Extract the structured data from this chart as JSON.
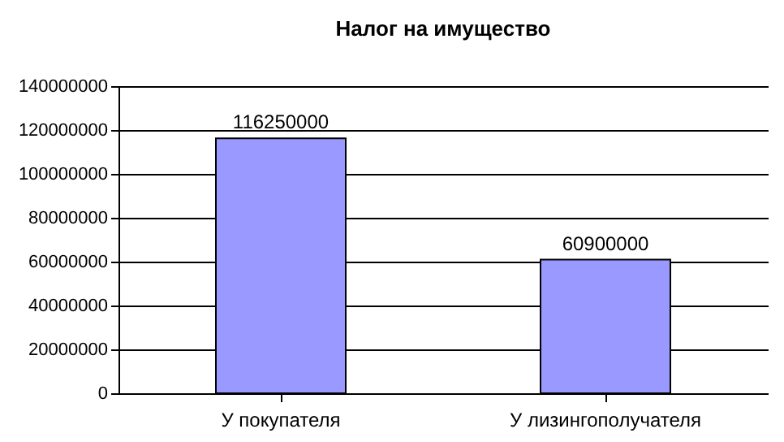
{
  "chart_data": {
    "type": "bar",
    "title": "Налог на имущество",
    "categories": [
      "У покупателя",
      "У лизингополучателя"
    ],
    "values": [
      116250000,
      60900000
    ],
    "color": "#9999ff",
    "ylim": [
      0,
      140000000
    ],
    "yticks": [
      0,
      20000000,
      40000000,
      60000000,
      80000000,
      100000000,
      120000000,
      140000000
    ],
    "grid": "y",
    "data_labels": true
  }
}
